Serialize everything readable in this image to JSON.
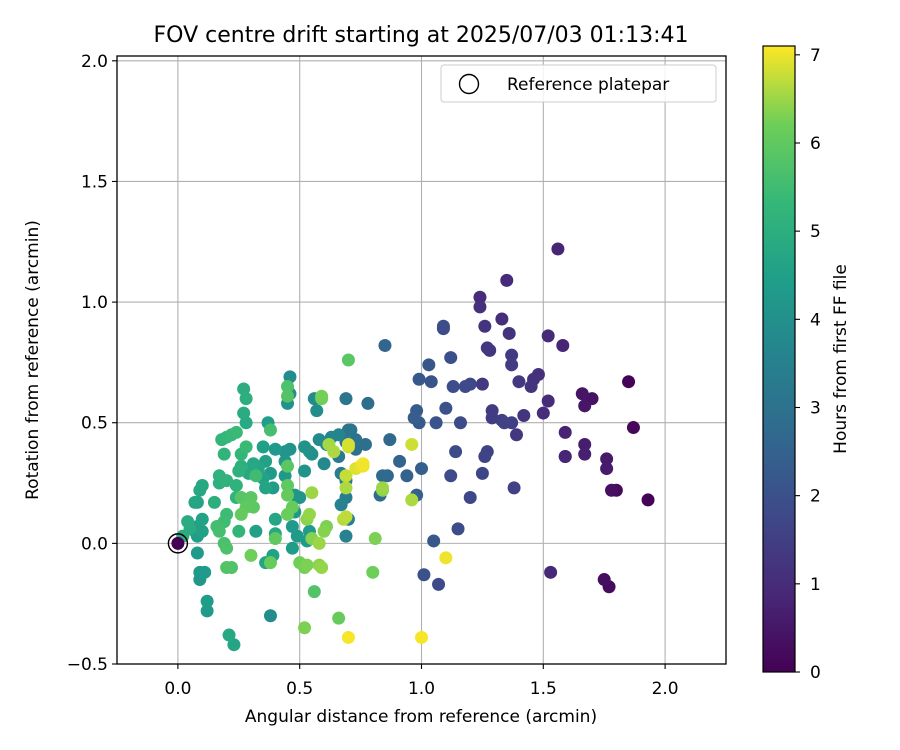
{
  "chart_data": {
    "type": "scatter",
    "title": "FOV centre drift starting at 2025/07/03 01:13:41",
    "xlabel": "Angular distance from reference (arcmin)",
    "ylabel": "Rotation from reference (arcmin)",
    "xlim": [
      -0.25,
      2.25
    ],
    "ylim": [
      -0.5,
      2.02
    ],
    "xticks": [
      0.0,
      0.5,
      1.0,
      1.5,
      2.0
    ],
    "xtick_labels": [
      "0.0",
      "0.5",
      "1.0",
      "1.5",
      "2.0"
    ],
    "yticks": [
      -0.5,
      0.0,
      0.5,
      1.0,
      1.5,
      2.0
    ],
    "ytick_labels": [
      "−0.5",
      "0.0",
      "0.5",
      "1.0",
      "1.5",
      "2.0"
    ],
    "grid": true,
    "colormap": "viridis",
    "colorbar": {
      "label": "Hours from first FF file",
      "min": 0,
      "max": 7.1,
      "ticks": [
        0,
        1,
        2,
        3,
        4,
        5,
        6,
        7
      ],
      "tick_labels": [
        "0",
        "1",
        "2",
        "3",
        "4",
        "5",
        "6",
        "7"
      ]
    },
    "legend": {
      "placement": "top-right",
      "entries": [
        {
          "label": "Reference platepar",
          "marker": "hollow-circle"
        }
      ]
    },
    "reference_point": {
      "x": 0.0,
      "y": 0.0
    },
    "points": [
      [
        1.93,
        0.18,
        0.05
      ],
      [
        1.85,
        0.67,
        0.1
      ],
      [
        1.87,
        0.48,
        0.15
      ],
      [
        1.8,
        0.22,
        0.2
      ],
      [
        1.77,
        -0.18,
        0.25
      ],
      [
        1.75,
        -0.15,
        0.3
      ],
      [
        1.78,
        0.22,
        0.35
      ],
      [
        1.7,
        0.6,
        0.4
      ],
      [
        1.66,
        0.62,
        0.45
      ],
      [
        1.67,
        0.57,
        0.5
      ],
      [
        1.76,
        0.35,
        0.55
      ],
      [
        1.76,
        0.31,
        0.6
      ],
      [
        1.67,
        0.41,
        0.65
      ],
      [
        1.67,
        0.37,
        0.7
      ],
      [
        1.59,
        0.36,
        0.75
      ],
      [
        1.59,
        0.46,
        0.8
      ],
      [
        1.59,
        0.36,
        0.82
      ],
      [
        1.58,
        0.82,
        0.85
      ],
      [
        1.53,
        -0.12,
        0.9
      ],
      [
        1.52,
        0.86,
        0.95
      ],
      [
        1.52,
        0.59,
        1.0
      ],
      [
        1.5,
        0.54,
        1.05
      ],
      [
        1.48,
        0.7,
        1.1
      ],
      [
        1.46,
        0.68,
        1.15
      ],
      [
        1.45,
        0.65,
        1.2
      ],
      [
        1.42,
        0.53,
        1.25
      ],
      [
        1.39,
        0.45,
        1.3
      ],
      [
        1.4,
        0.67,
        1.35
      ],
      [
        1.37,
        0.78,
        1.4
      ],
      [
        1.37,
        0.74,
        1.45
      ],
      [
        1.37,
        0.5,
        1.5
      ],
      [
        1.38,
        0.23,
        1.55
      ],
      [
        1.56,
        1.22,
        0.85
      ],
      [
        1.35,
        1.09,
        0.95
      ],
      [
        1.33,
        0.93,
        1.05
      ],
      [
        1.36,
        0.87,
        1.15
      ],
      [
        1.28,
        0.8,
        1.25
      ],
      [
        1.27,
        0.81,
        1.3
      ],
      [
        1.26,
        0.9,
        1.2
      ],
      [
        1.24,
        1.02,
        1.0
      ],
      [
        1.24,
        0.98,
        1.1
      ],
      [
        1.25,
        0.66,
        1.35
      ],
      [
        1.29,
        0.55,
        1.4
      ],
      [
        1.29,
        0.52,
        1.45
      ],
      [
        1.33,
        0.51,
        1.5
      ],
      [
        1.34,
        0.5,
        1.55
      ],
      [
        1.27,
        0.38,
        1.6
      ],
      [
        1.26,
        0.36,
        1.65
      ],
      [
        1.25,
        0.29,
        1.7
      ],
      [
        1.2,
        0.66,
        1.75
      ],
      [
        1.18,
        0.65,
        1.8
      ],
      [
        1.16,
        0.5,
        1.85
      ],
      [
        1.14,
        0.38,
        1.85
      ],
      [
        1.13,
        0.65,
        1.9
      ],
      [
        1.12,
        0.77,
        1.95
      ],
      [
        1.09,
        0.89,
        1.8
      ],
      [
        1.09,
        0.9,
        1.9
      ],
      [
        1.1,
        0.56,
        2.0
      ],
      [
        1.06,
        0.5,
        2.05
      ],
      [
        1.04,
        0.67,
        2.1
      ],
      [
        1.03,
        0.74,
        2.15
      ],
      [
        0.99,
        0.68,
        2.2
      ],
      [
        0.99,
        0.5,
        2.25
      ],
      [
        0.98,
        0.55,
        2.3
      ],
      [
        0.97,
        0.52,
        2.35
      ],
      [
        1.0,
        0.31,
        2.4
      ],
      [
        0.98,
        0.2,
        2.45
      ],
      [
        0.94,
        0.28,
        2.5
      ],
      [
        0.91,
        0.34,
        2.55
      ],
      [
        1.12,
        0.28,
        1.8
      ],
      [
        1.15,
        0.06,
        1.9
      ],
      [
        1.07,
        -0.17,
        1.8
      ],
      [
        1.01,
        -0.13,
        2.0
      ],
      [
        1.05,
        0.01,
        2.2
      ],
      [
        1.2,
        0.19,
        1.75
      ],
      [
        0.85,
        0.82,
        2.6
      ],
      [
        0.87,
        0.43,
        2.65
      ],
      [
        0.86,
        0.28,
        2.7
      ],
      [
        0.84,
        0.28,
        2.75
      ],
      [
        0.83,
        0.2,
        2.8
      ],
      [
        0.78,
        0.58,
        2.85
      ],
      [
        0.77,
        0.41,
        2.9
      ],
      [
        0.73,
        0.39,
        2.95
      ],
      [
        0.73,
        0.43,
        3.0
      ],
      [
        0.71,
        0.47,
        3.05
      ],
      [
        0.69,
        0.6,
        3.1
      ],
      [
        0.7,
        0.47,
        3.15
      ],
      [
        0.69,
        0.42,
        3.2
      ],
      [
        0.66,
        0.36,
        3.25
      ],
      [
        0.67,
        0.29,
        3.3
      ],
      [
        0.69,
        0.26,
        3.35
      ],
      [
        0.69,
        0.19,
        3.4
      ],
      [
        0.7,
        0.1,
        3.45
      ],
      [
        0.69,
        0.03,
        3.5
      ],
      [
        0.67,
        0.16,
        3.55
      ],
      [
        0.66,
        0.45,
        3.6
      ],
      [
        0.63,
        0.44,
        3.65
      ],
      [
        0.61,
        0.41,
        3.7
      ],
      [
        0.6,
        0.33,
        3.75
      ],
      [
        0.58,
        0.43,
        3.8
      ],
      [
        0.56,
        0.6,
        3.85
      ],
      [
        0.57,
        0.55,
        3.9
      ],
      [
        0.54,
        0.38,
        3.95
      ],
      [
        0.55,
        0.37,
        4.0
      ],
      [
        0.52,
        0.4,
        4.05
      ],
      [
        0.52,
        0.3,
        4.1
      ],
      [
        0.5,
        0.19,
        4.15
      ],
      [
        0.48,
        0.2,
        4.2
      ],
      [
        0.48,
        0.13,
        4.25
      ],
      [
        0.46,
        0.69,
        3.9
      ],
      [
        0.46,
        0.62,
        4.0
      ],
      [
        0.45,
        0.58,
        4.05
      ],
      [
        0.46,
        0.39,
        4.1
      ],
      [
        0.44,
        0.38,
        4.15
      ],
      [
        0.44,
        0.34,
        4.2
      ],
      [
        0.44,
        0.28,
        4.25
      ],
      [
        0.47,
        0.07,
        4.3
      ],
      [
        0.49,
        0.03,
        4.35
      ],
      [
        0.47,
        -0.02,
        4.4
      ],
      [
        0.54,
        0.05,
        4.3
      ],
      [
        0.53,
        0.01,
        4.35
      ],
      [
        0.4,
        0.39,
        4.3
      ],
      [
        0.38,
        0.29,
        4.35
      ],
      [
        0.39,
        0.23,
        4.4
      ],
      [
        0.37,
        0.5,
        4.45
      ],
      [
        0.35,
        0.4,
        4.5
      ],
      [
        0.36,
        0.34,
        4.55
      ],
      [
        0.35,
        0.27,
        4.6
      ],
      [
        0.36,
        0.23,
        4.65
      ],
      [
        0.33,
        0.31,
        4.7
      ],
      [
        0.31,
        0.33,
        4.75
      ],
      [
        0.29,
        0.29,
        4.8
      ],
      [
        0.28,
        0.5,
        4.85
      ],
      [
        0.27,
        0.54,
        4.9
      ],
      [
        0.27,
        0.64,
        4.95
      ],
      [
        0.28,
        0.6,
        5.0
      ],
      [
        0.26,
        0.32,
        5.05
      ],
      [
        0.25,
        0.3,
        5.1
      ],
      [
        0.24,
        0.24,
        5.15
      ],
      [
        0.24,
        0.19,
        5.2
      ],
      [
        0.25,
        0.05,
        5.25
      ],
      [
        0.23,
        -0.42,
        4.7
      ],
      [
        0.21,
        -0.38,
        4.75
      ],
      [
        0.12,
        -0.28,
        4.3
      ],
      [
        0.12,
        -0.24,
        4.4
      ],
      [
        0.38,
        -0.3,
        3.9
      ],
      [
        0.32,
        0.05,
        4.55
      ],
      [
        0.39,
        -0.05,
        4.6
      ],
      [
        0.36,
        -0.08,
        4.65
      ],
      [
        0.4,
        0.1,
        4.7
      ],
      [
        0.4,
        0.04,
        4.75
      ],
      [
        0.09,
        -0.15,
        4.2
      ],
      [
        0.09,
        -0.12,
        4.25
      ],
      [
        0.11,
        -0.12,
        4.3
      ],
      [
        0.08,
        -0.04,
        4.35
      ],
      [
        0.08,
        0.03,
        4.4
      ],
      [
        0.07,
        0.05,
        4.45
      ],
      [
        0.08,
        0.07,
        4.5
      ],
      [
        0.1,
        0.05,
        4.55
      ],
      [
        0.1,
        0.1,
        4.6
      ],
      [
        0.08,
        0.17,
        4.65
      ],
      [
        0.07,
        0.17,
        4.7
      ],
      [
        0.09,
        0.22,
        4.75
      ],
      [
        0.1,
        0.24,
        4.8
      ],
      [
        0.05,
        0.06,
        4.85
      ],
      [
        0.04,
        0.09,
        4.9
      ],
      [
        0.02,
        0.03,
        4.95
      ],
      [
        0.15,
        0.17,
        5.0
      ],
      [
        0.17,
        0.25,
        5.05
      ],
      [
        0.17,
        0.28,
        5.1
      ],
      [
        0.2,
        0.26,
        5.15
      ],
      [
        0.19,
        0.37,
        5.2
      ],
      [
        0.18,
        0.43,
        5.25
      ],
      [
        0.2,
        0.44,
        5.3
      ],
      [
        0.22,
        0.45,
        5.35
      ],
      [
        0.24,
        0.46,
        5.4
      ],
      [
        0.2,
        0.12,
        5.45
      ],
      [
        0.19,
        0.09,
        5.5
      ],
      [
        0.16,
        0.07,
        5.55
      ],
      [
        0.17,
        0.05,
        5.6
      ],
      [
        0.19,
        0.0,
        5.65
      ],
      [
        0.2,
        -0.02,
        5.7
      ],
      [
        0.22,
        -0.1,
        5.75
      ],
      [
        0.2,
        -0.1,
        5.8
      ],
      [
        0.26,
        0.19,
        5.85
      ],
      [
        0.3,
        0.19,
        5.9
      ],
      [
        0.31,
        0.15,
        5.95
      ],
      [
        0.28,
        0.15,
        6.0
      ],
      [
        0.26,
        0.12,
        6.05
      ],
      [
        0.26,
        0.37,
        5.3
      ],
      [
        0.28,
        0.4,
        5.4
      ],
      [
        0.32,
        0.28,
        5.5
      ],
      [
        0.38,
        0.47,
        5.6
      ],
      [
        0.45,
        0.65,
        5.7
      ],
      [
        0.45,
        0.61,
        5.8
      ],
      [
        0.45,
        0.32,
        5.9
      ],
      [
        0.45,
        0.24,
        6.0
      ],
      [
        0.45,
        0.2,
        6.05
      ],
      [
        0.47,
        0.15,
        6.1
      ],
      [
        0.45,
        0.12,
        6.15
      ],
      [
        0.4,
        0.02,
        6.0
      ],
      [
        0.38,
        -0.08,
        6.1
      ],
      [
        0.3,
        -0.05,
        6.2
      ],
      [
        0.5,
        -0.08,
        6.2
      ],
      [
        0.52,
        -0.1,
        6.25
      ],
      [
        0.53,
        -0.09,
        6.3
      ],
      [
        0.56,
        -0.2,
        5.8
      ],
      [
        0.52,
        -0.35,
        6.3
      ],
      [
        0.55,
        0.02,
        6.35
      ],
      [
        0.53,
        0.1,
        6.4
      ],
      [
        0.54,
        0.12,
        6.45
      ],
      [
        0.55,
        0.21,
        6.5
      ],
      [
        0.59,
        0.6,
        6.2
      ],
      [
        0.59,
        0.61,
        6.25
      ],
      [
        0.61,
        0.07,
        6.3
      ],
      [
        0.6,
        0.05,
        6.35
      ],
      [
        0.58,
        -0.09,
        6.4
      ],
      [
        0.59,
        -0.1,
        6.45
      ],
      [
        0.58,
        0.0,
        6.5
      ],
      [
        0.62,
        0.41,
        6.55
      ],
      [
        0.64,
        0.38,
        6.6
      ],
      [
        0.7,
        0.76,
        5.9
      ],
      [
        0.68,
        0.1,
        6.65
      ],
      [
        0.69,
        0.11,
        6.7
      ],
      [
        0.69,
        0.23,
        6.6
      ],
      [
        0.69,
        0.28,
        6.75
      ],
      [
        0.7,
        0.4,
        6.8
      ],
      [
        0.7,
        0.41,
        6.85
      ],
      [
        0.73,
        0.31,
        6.9
      ],
      [
        0.75,
        0.32,
        6.95
      ],
      [
        0.76,
        0.32,
        7.0
      ],
      [
        0.76,
        0.33,
        7.02
      ],
      [
        0.66,
        -0.31,
        6.1
      ],
      [
        0.7,
        -0.39,
        7.05
      ],
      [
        0.8,
        -0.12,
        6.2
      ],
      [
        0.81,
        0.02,
        6.3
      ],
      [
        0.84,
        0.22,
        6.4
      ],
      [
        0.84,
        0.23,
        6.5
      ],
      [
        0.96,
        0.18,
        6.6
      ],
      [
        0.96,
        0.41,
        6.8
      ],
      [
        1.0,
        -0.39,
        7.05
      ],
      [
        1.1,
        -0.06,
        7.0
      ]
    ]
  }
}
